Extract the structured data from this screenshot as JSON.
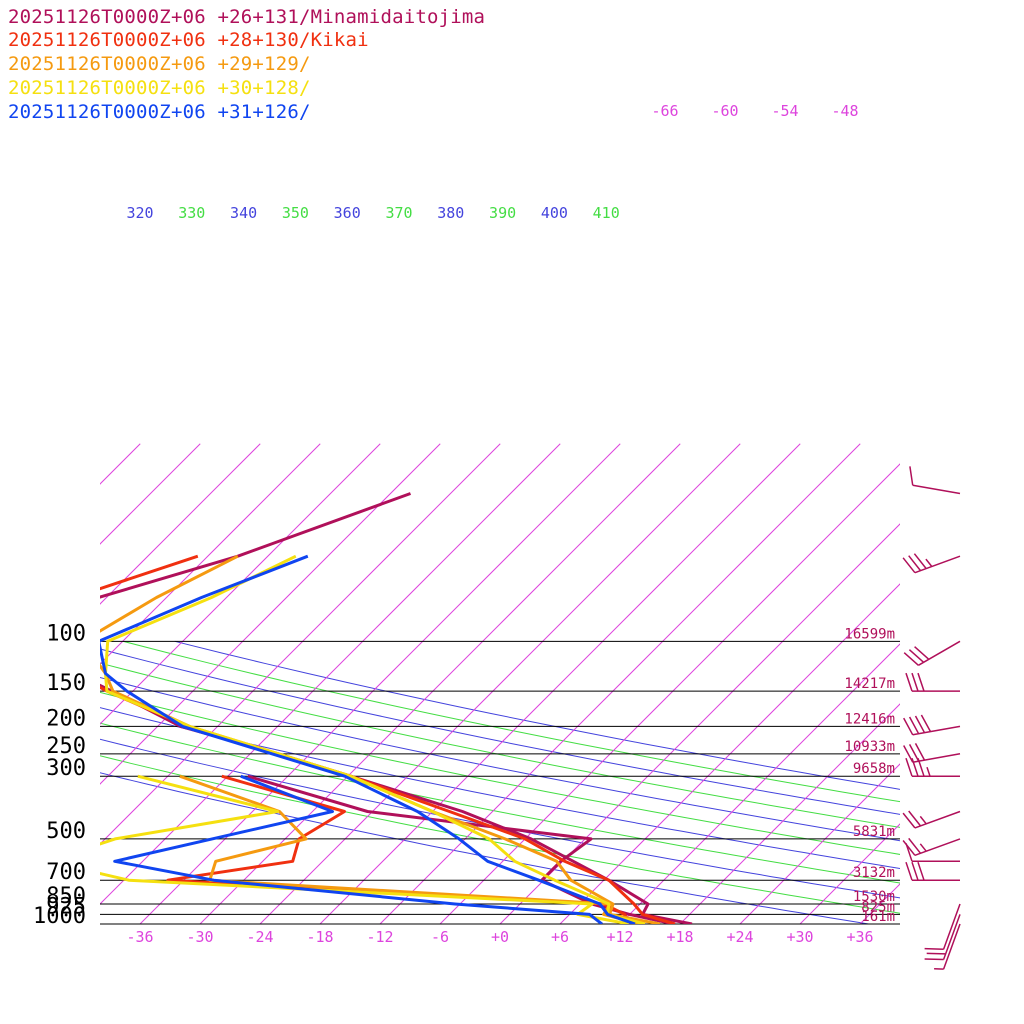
{
  "colors": {
    "background": "#ffffff",
    "isobar": "#000000",
    "isotherm": "#dd44dd",
    "dry_adiabat_green": "#44dd44",
    "dry_adiabat_blue": "#4444dd",
    "wind_barb": "#b0105a",
    "height_label": "#b0105a",
    "temp_axis_label": "#dd44dd"
  },
  "legend": [
    {
      "text": "20251126T0000Z+06 +26+131/Minamidaitojima",
      "color": "#b0105a"
    },
    {
      "text": "20251126T0000Z+06 +28+130/Kikai",
      "color": "#f03010"
    },
    {
      "text": "20251126T0000Z+06 +29+129/",
      "color": "#f59a10"
    },
    {
      "text": "20251126T0000Z+06 +30+128/",
      "color": "#f5e010"
    },
    {
      "text": "20251126T0000Z+06 +31+126/",
      "color": "#1045f0"
    }
  ],
  "chart_data": {
    "type": "line",
    "subtype": "skew-T log-p sounding",
    "xlabel": "",
    "ylabel": "",
    "x_unit": "degC",
    "y_unit": "hPa",
    "pressure_ticks": [
      {
        "p": 100,
        "label": "100",
        "height": "16599m"
      },
      {
        "p": 150,
        "label": "150",
        "height": "14217m"
      },
      {
        "p": 200,
        "label": "200",
        "height": "12416m"
      },
      {
        "p": 250,
        "label": "250",
        "height": "10933m"
      },
      {
        "p": 300,
        "label": "300",
        "height": "9658m"
      },
      {
        "p": 500,
        "label": "500",
        "height": "5831m"
      },
      {
        "p": 700,
        "label": "700",
        "height": "3132m"
      },
      {
        "p": 850,
        "label": "850",
        "height": "1530m"
      },
      {
        "p": 925,
        "label": "925",
        "height": "825m"
      },
      {
        "p": 1000,
        "label": "1000",
        "height": "161m"
      }
    ],
    "temperature_ticks": [
      {
        "t": -36,
        "label": "-36"
      },
      {
        "t": -30,
        "label": "-30"
      },
      {
        "t": -24,
        "label": "-24"
      },
      {
        "t": -18,
        "label": "-18"
      },
      {
        "t": -12,
        "label": "-12"
      },
      {
        "t": -6,
        "label": "-6"
      },
      {
        "t": 0,
        "label": "+0"
      },
      {
        "t": 6,
        "label": "+6"
      },
      {
        "t": 12,
        "label": "+12"
      },
      {
        "t": 18,
        "label": "+18"
      },
      {
        "t": 24,
        "label": "+24"
      },
      {
        "t": 30,
        "label": "+30"
      },
      {
        "t": 36,
        "label": "+36"
      }
    ],
    "upper_temperature_labels": [
      "-66",
      "-60",
      "-54",
      "-48"
    ],
    "theta_labels": [
      "320",
      "330",
      "340",
      "350",
      "360",
      "370",
      "380",
      "390",
      "400",
      "410"
    ],
    "theta_values": [
      310,
      320,
      330,
      340,
      350,
      360,
      370,
      380,
      390,
      400,
      410
    ],
    "temperature_range": [
      -40,
      40
    ],
    "pressure_range": [
      1000,
      100
    ],
    "series": [
      {
        "name": "20251126T0000Z+06 +26+131/Minamidaitojima",
        "color": "#b0105a",
        "temperature": [
          [
            1000,
            19.2
          ],
          [
            925,
            13.3
          ],
          [
            850,
            12.8
          ],
          [
            700,
            6.5
          ],
          [
            500,
            -5.4
          ],
          [
            400,
            -15.0
          ],
          [
            300,
            -29.7
          ],
          [
            250,
            -39.2
          ],
          [
            200,
            -51.7
          ],
          [
            150,
            -62.1
          ],
          [
            100,
            -77.5
          ],
          [
            70,
            -72.8
          ],
          [
            50,
            -63.0
          ],
          [
            30,
            -52.0
          ]
        ],
        "dewpoint": [
          [
            1000,
            17.4
          ],
          [
            925,
            12.0
          ],
          [
            850,
            7.2
          ],
          [
            700,
            -0.2
          ],
          [
            600,
            -0.2
          ],
          [
            500,
            0.6
          ],
          [
            400,
            -24.5
          ],
          [
            300,
            -40.0
          ]
        ]
      },
      {
        "name": "20251126T0000Z+06 +28+130/Kikai",
        "color": "#f03010",
        "temperature": [
          [
            1000,
            17.5
          ],
          [
            925,
            13.3
          ],
          [
            850,
            11.4
          ],
          [
            700,
            6.5
          ],
          [
            600,
            0.2
          ],
          [
            500,
            -6.0
          ],
          [
            400,
            -16.3
          ],
          [
            300,
            -29.7
          ],
          [
            200,
            -51.0
          ],
          [
            150,
            -62.6
          ],
          [
            100,
            -76.5
          ],
          [
            70,
            -75.3
          ],
          [
            50,
            -67.0
          ]
        ],
        "dewpoint": [
          [
            1000,
            13.0
          ],
          [
            925,
            11.5
          ],
          [
            850,
            8.4
          ],
          [
            700,
            -37.6
          ],
          [
            600,
            -27.0
          ],
          [
            500,
            -28.6
          ],
          [
            400,
            -26.8
          ],
          [
            300,
            -42.6
          ]
        ]
      },
      {
        "name": "20251126T0000Z+06 +29+129/",
        "color": "#f59a10",
        "temperature": [
          [
            1000,
            16.0
          ],
          [
            925,
            10.0
          ],
          [
            850,
            9.3
          ],
          [
            700,
            2.7
          ],
          [
            600,
            -0.6
          ],
          [
            500,
            -8.0
          ],
          [
            400,
            -18.0
          ],
          [
            300,
            -29.7
          ],
          [
            200,
            -50.8
          ],
          [
            150,
            -62.0
          ],
          [
            130,
            -64.5
          ],
          [
            100,
            -70.0
          ],
          [
            70,
            -67.0
          ],
          [
            50,
            -63.0
          ]
        ],
        "dewpoint": [
          [
            1000,
            14.0
          ],
          [
            925,
            9.4
          ],
          [
            850,
            9.0
          ],
          [
            700,
            -33.4
          ],
          [
            600,
            -34.7
          ],
          [
            500,
            -27.9
          ],
          [
            400,
            -33.3
          ],
          [
            300,
            -46.8
          ]
        ]
      },
      {
        "name": "20251126T0000Z+06 +30+128/",
        "color": "#f5e010",
        "temperature": [
          [
            1000,
            14.5
          ],
          [
            925,
            9.8
          ],
          [
            850,
            8.9
          ],
          [
            700,
            1.1
          ],
          [
            600,
            -4.8
          ],
          [
            500,
            -9.6
          ],
          [
            400,
            -18.0
          ],
          [
            300,
            -29.7
          ],
          [
            200,
            -50.8
          ],
          [
            150,
            -62.6
          ],
          [
            130,
            -64.5
          ],
          [
            100,
            -67.5
          ],
          [
            70,
            -61.5
          ],
          [
            50,
            -57.2
          ]
        ],
        "dewpoint": [
          [
            1000,
            12.9
          ],
          [
            925,
            6.8
          ],
          [
            850,
            7.2
          ],
          [
            700,
            -41.5
          ],
          [
            600,
            -51.5
          ],
          [
            500,
            -47.0
          ],
          [
            400,
            -33.5
          ],
          [
            300,
            -51.0
          ]
        ]
      },
      {
        "name": "20251126T0000Z+06 +31+126/",
        "color": "#1045f0",
        "temperature": [
          [
            1000,
            13.5
          ],
          [
            925,
            9.8
          ],
          [
            850,
            8.0
          ],
          [
            700,
            -0.5
          ],
          [
            600,
            -7.5
          ],
          [
            500,
            -12.6
          ],
          [
            400,
            -19.5
          ],
          [
            300,
            -30.3
          ],
          [
            200,
            -51.5
          ],
          [
            150,
            -60.6
          ],
          [
            130,
            -64.5
          ],
          [
            100,
            -68.4
          ],
          [
            70,
            -62.5
          ],
          [
            50,
            -56.0
          ]
        ],
        "dewpoint": [
          [
            1000,
            10.2
          ],
          [
            925,
            8.0
          ],
          [
            850,
            -6.5
          ],
          [
            700,
            -33.0
          ],
          [
            600,
            -44.8
          ],
          [
            500,
            -37.3
          ],
          [
            400,
            -28.0
          ],
          [
            300,
            -40.7
          ]
        ]
      }
    ],
    "wind_barbs": [
      {
        "p": 30,
        "dir": 280,
        "speed": 10
      },
      {
        "p": 50,
        "dir": 250,
        "speed": 35
      },
      {
        "p": 100,
        "dir": 240,
        "speed": 30
      },
      {
        "p": 150,
        "dir": 270,
        "speed": 30
      },
      {
        "p": 200,
        "dir": 260,
        "speed": 40
      },
      {
        "p": 250,
        "dir": 260,
        "speed": 30
      },
      {
        "p": 300,
        "dir": 270,
        "speed": 35
      },
      {
        "p": 400,
        "dir": 250,
        "speed": 25
      },
      {
        "p": 500,
        "dir": 250,
        "speed": 25
      },
      {
        "p": 600,
        "dir": 270,
        "speed": 10
      },
      {
        "p": 700,
        "dir": 270,
        "speed": 30
      },
      {
        "p": 850,
        "dir": 200,
        "speed": 10
      },
      {
        "p": 925,
        "dir": 200,
        "speed": 20
      },
      {
        "p": 1000,
        "dir": 200,
        "speed": 5
      }
    ]
  }
}
